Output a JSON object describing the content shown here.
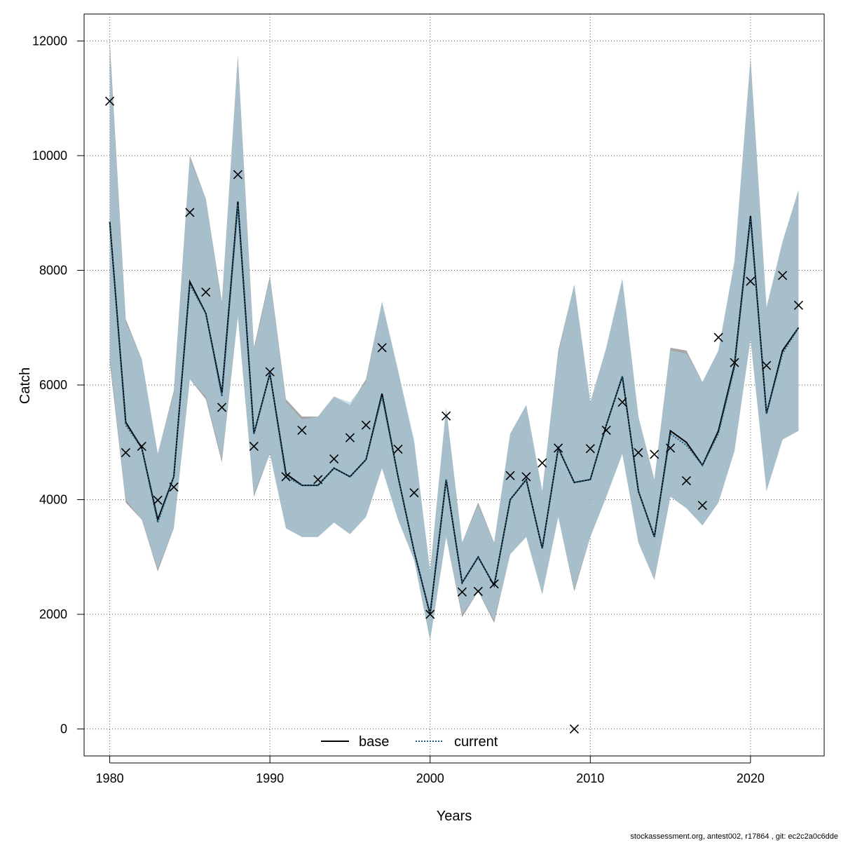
{
  "chart_data": {
    "type": "line",
    "xlabel": "Years",
    "ylabel": "Catch",
    "xlim": [
      1978.4,
      2024.6
    ],
    "ylim": [
      -470,
      12470
    ],
    "x_ticks": [
      "1980",
      "1990",
      "2000",
      "2010",
      "2020"
    ],
    "y_ticks": [
      "0",
      "2000",
      "4000",
      "6000",
      "8000",
      "10000",
      "12000"
    ],
    "grid": true,
    "legend_position": "bottom-center",
    "years": [
      1980,
      1981,
      1982,
      1983,
      1984,
      1985,
      1986,
      1987,
      1988,
      1989,
      1990,
      1991,
      1992,
      1993,
      1994,
      1995,
      1996,
      1997,
      1998,
      1999,
      2000,
      2001,
      2002,
      2003,
      2004,
      2005,
      2006,
      2007,
      2008,
      2009,
      2010,
      2011,
      2012,
      2013,
      2014,
      2015,
      2016,
      2017,
      2018,
      2019,
      2020,
      2021,
      2022,
      2023
    ],
    "series": [
      {
        "name": "base",
        "color": "#000000",
        "dash": "solid",
        "values": [
          8850,
          5350,
          4900,
          3650,
          4400,
          7800,
          7250,
          5850,
          9200,
          5150,
          6200,
          4450,
          4250,
          4250,
          4550,
          4400,
          4700,
          5850,
          4400,
          3100,
          2000,
          4350,
          2550,
          3000,
          2500,
          4000,
          4350,
          3150,
          4900,
          4300,
          4350,
          5300,
          6150,
          4150,
          3350,
          5200,
          5000,
          4600,
          5200,
          6350,
          8950,
          5500,
          6600,
          7000
        ],
        "lower": [
          6400,
          3950,
          3650,
          2750,
          3500,
          6100,
          5750,
          4650,
          7200,
          4050,
          4800,
          3500,
          3350,
          3350,
          3600,
          3400,
          3700,
          4550,
          3650,
          2950,
          1550,
          3350,
          1950,
          2400,
          1850,
          3050,
          3350,
          2350,
          3700,
          2400,
          3350,
          4050,
          4800,
          3250,
          2600,
          4050,
          3850,
          3550,
          3950,
          4850,
          6800,
          4150,
          5050,
          5200
        ],
        "upper": [
          12000,
          7150,
          6450,
          4800,
          5900,
          10000,
          9250,
          7450,
          11750,
          6650,
          7900,
          5750,
          5450,
          5450,
          5800,
          5650,
          6100,
          7450,
          6250,
          5000,
          2750,
          5600,
          3250,
          3950,
          3250,
          5150,
          5650,
          4150,
          6600,
          7750,
          5700,
          6650,
          7850,
          5450,
          4350,
          6650,
          6600,
          6050,
          6600,
          8150,
          11700,
          7350,
          8500,
          9400
        ],
        "band_color": "#8a8a8a"
      },
      {
        "name": "current",
        "color": "#1b5e82",
        "dash": "dotted",
        "values": [
          8850,
          5300,
          4900,
          3600,
          4400,
          7750,
          7250,
          5800,
          9150,
          5150,
          6200,
          4400,
          4250,
          4250,
          4550,
          4400,
          4700,
          5800,
          4400,
          3100,
          2000,
          4350,
          2550,
          3000,
          2500,
          4000,
          4350,
          3150,
          4900,
          4300,
          4350,
          5300,
          6150,
          4150,
          3350,
          5150,
          4950,
          4600,
          5150,
          6300,
          8900,
          5500,
          6550,
          7000
        ],
        "lower": [
          6500,
          4000,
          3650,
          2800,
          3500,
          6100,
          5800,
          4700,
          7200,
          4100,
          4800,
          3500,
          3350,
          3350,
          3600,
          3400,
          3700,
          4550,
          3650,
          2950,
          1550,
          3350,
          2000,
          2400,
          1900,
          3050,
          3350,
          2350,
          3700,
          2450,
          3350,
          4050,
          4800,
          3250,
          2600,
          4050,
          3850,
          3550,
          3950,
          4850,
          6800,
          4150,
          5050,
          5200
        ],
        "upper": [
          11900,
          7100,
          6450,
          4800,
          5850,
          9950,
          9250,
          7400,
          11700,
          6600,
          7850,
          5700,
          5400,
          5450,
          5800,
          5700,
          6050,
          7450,
          6250,
          5050,
          2750,
          5600,
          3250,
          3900,
          3250,
          5150,
          5650,
          4150,
          6550,
          7750,
          5700,
          6650,
          7850,
          5450,
          4350,
          6600,
          6550,
          6050,
          6600,
          8150,
          11650,
          7350,
          8500,
          9400
        ],
        "band_color": "#a6cfe3"
      }
    ],
    "observed": {
      "marker": "x",
      "years": [
        1980,
        1981,
        1982,
        1983,
        1984,
        1985,
        1986,
        1987,
        1988,
        1989,
        1990,
        1991,
        1992,
        1993,
        1994,
        1995,
        1996,
        1997,
        1998,
        1999,
        2000,
        2001,
        2002,
        2003,
        2004,
        2005,
        2006,
        2007,
        2008,
        2009,
        2010,
        2011,
        2012,
        2013,
        2014,
        2015,
        2016,
        2017,
        2018,
        2019,
        2020,
        2021,
        2022,
        2023
      ],
      "values": [
        10950,
        4820,
        4930,
        3990,
        4220,
        9010,
        7620,
        5610,
        9670,
        4930,
        6230,
        4400,
        5210,
        4350,
        4710,
        5080,
        5300,
        6650,
        4880,
        4120,
        2000,
        5460,
        2390,
        2400,
        2530,
        4420,
        4400,
        4640,
        4900,
        0,
        4890,
        5210,
        5700,
        4820,
        4790,
        4900,
        4330,
        3900,
        6830,
        6390,
        7810,
        6340,
        7910,
        7390
      ]
    },
    "legend": [
      {
        "label": "base",
        "color": "#000000",
        "dash": "solid"
      },
      {
        "label": "current",
        "color": "#1b5e82",
        "dash": "dotted"
      }
    ],
    "footer": "stockassessment.org, antest002, r17864 , git: ec2c2a0c6dde"
  }
}
